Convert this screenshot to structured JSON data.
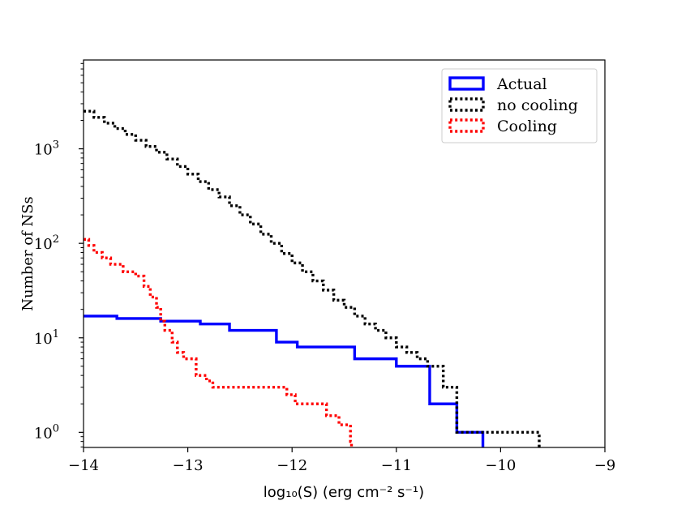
{
  "chart_data": {
    "type": "line",
    "subtype": "step-histogram",
    "title": "",
    "xlabel": "log₁₀(S) (erg cm⁻² s⁻¹)",
    "ylabel": "Number of NSs",
    "xscale": "linear",
    "yscale": "log",
    "xlim": [
      -14,
      -9
    ],
    "ylim_log10": [
      -0.16,
      3.94
    ],
    "xticks": [
      -14,
      -13,
      -12,
      -11,
      -10,
      -9
    ],
    "xtick_labels": [
      "−14",
      "−13",
      "−12",
      "−11",
      "−10",
      "−9"
    ],
    "ytick_exponents": [
      0,
      1,
      2,
      3
    ],
    "ytick_labels": [
      "0",
      "1",
      "2",
      "3"
    ],
    "ytick_base": "10",
    "legend_position": "top-right",
    "series": [
      {
        "name": "Actual",
        "color": "#0000ff",
        "style": "solid",
        "bins": [
          [
            -14.0,
            -13.68,
            17
          ],
          [
            -13.68,
            -13.26,
            16
          ],
          [
            -13.26,
            -12.88,
            15
          ],
          [
            -12.88,
            -12.6,
            14
          ],
          [
            -12.6,
            -12.15,
            12
          ],
          [
            -12.15,
            -11.95,
            9
          ],
          [
            -11.95,
            -11.4,
            8
          ],
          [
            -11.4,
            -11.0,
            6
          ],
          [
            -11.0,
            -10.68,
            5
          ],
          [
            -10.68,
            -10.42,
            2
          ],
          [
            -10.42,
            -10.17,
            1
          ]
        ]
      },
      {
        "name": "no cooling",
        "color": "#000000",
        "style": "dotted",
        "bins": [
          [
            -14.0,
            -13.9,
            2500
          ],
          [
            -13.9,
            -13.8,
            2150
          ],
          [
            -13.8,
            -13.7,
            1870
          ],
          [
            -13.7,
            -13.6,
            1640
          ],
          [
            -13.6,
            -13.5,
            1420
          ],
          [
            -13.5,
            -13.4,
            1230
          ],
          [
            -13.4,
            -13.3,
            1060
          ],
          [
            -13.3,
            -13.2,
            920
          ],
          [
            -13.2,
            -13.1,
            780
          ],
          [
            -13.1,
            -13.0,
            650
          ],
          [
            -13.0,
            -12.9,
            540
          ],
          [
            -12.9,
            -12.8,
            450
          ],
          [
            -12.8,
            -12.7,
            370
          ],
          [
            -12.7,
            -12.6,
            310
          ],
          [
            -12.6,
            -12.5,
            250
          ],
          [
            -12.5,
            -12.4,
            200
          ],
          [
            -12.4,
            -12.3,
            160
          ],
          [
            -12.3,
            -12.2,
            125
          ],
          [
            -12.2,
            -12.1,
            100
          ],
          [
            -12.1,
            -12.0,
            78
          ],
          [
            -12.0,
            -11.9,
            62
          ],
          [
            -11.9,
            -11.8,
            50
          ],
          [
            -11.8,
            -11.7,
            40
          ],
          [
            -11.7,
            -11.6,
            32
          ],
          [
            -11.6,
            -11.5,
            25
          ],
          [
            -11.5,
            -11.4,
            21
          ],
          [
            -11.4,
            -11.3,
            17
          ],
          [
            -11.3,
            -11.2,
            14
          ],
          [
            -11.2,
            -11.1,
            12
          ],
          [
            -11.1,
            -11.0,
            10
          ],
          [
            -11.0,
            -10.9,
            8
          ],
          [
            -10.9,
            -10.8,
            7
          ],
          [
            -10.8,
            -10.7,
            6
          ],
          [
            -10.7,
            -10.55,
            5
          ],
          [
            -10.55,
            -10.42,
            3
          ],
          [
            -10.42,
            -9.63,
            1
          ]
        ]
      },
      {
        "name": "Cooling",
        "color": "#ff0000",
        "style": "dotted",
        "bins": [
          [
            -14.0,
            -13.95,
            110
          ],
          [
            -13.95,
            -13.9,
            95
          ],
          [
            -13.9,
            -13.82,
            80
          ],
          [
            -13.82,
            -13.74,
            70
          ],
          [
            -13.74,
            -13.62,
            60
          ],
          [
            -13.62,
            -13.5,
            50
          ],
          [
            -13.5,
            -13.42,
            45
          ],
          [
            -13.42,
            -13.36,
            35
          ],
          [
            -13.36,
            -13.3,
            27
          ],
          [
            -13.3,
            -13.26,
            21
          ],
          [
            -13.26,
            -13.22,
            15
          ],
          [
            -13.22,
            -13.15,
            12
          ],
          [
            -13.15,
            -13.1,
            9
          ],
          [
            -13.1,
            -13.04,
            7
          ],
          [
            -13.04,
            -12.92,
            6
          ],
          [
            -12.92,
            -12.82,
            4
          ],
          [
            -12.82,
            -12.76,
            3.5
          ],
          [
            -12.76,
            -12.05,
            3
          ],
          [
            -12.05,
            -11.97,
            2.5
          ],
          [
            -11.97,
            -11.67,
            2
          ],
          [
            -11.67,
            -11.55,
            1.5
          ],
          [
            -11.55,
            -11.44,
            1.2
          ],
          [
            -11.44,
            -11.43,
            0.8
          ]
        ]
      }
    ]
  }
}
